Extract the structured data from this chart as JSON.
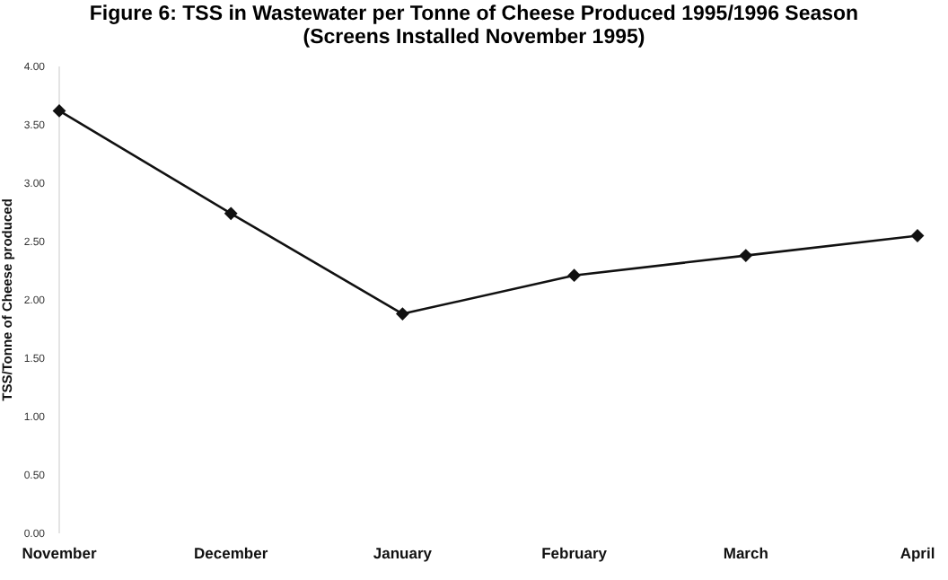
{
  "chart_data": {
    "type": "line",
    "title": "Figure 6: TSS in Wastewater per Tonne of Cheese Produced 1995/1996 Season",
    "subtitle": "(Screens Installed November 1995)",
    "ylabel": "TSS/Tonne of Cheese produced",
    "categories": [
      "November",
      "December",
      "January",
      "February",
      "March",
      "April"
    ],
    "series": [
      {
        "color": "#111111",
        "values": [
          3.62,
          2.74,
          1.88,
          2.21,
          2.38,
          2.55
        ]
      }
    ],
    "ylim": [
      0,
      4
    ],
    "yticks": [
      {
        "value": 0,
        "label": "0.00"
      },
      {
        "value": 0.5,
        "label": "0.50"
      },
      {
        "value": 1,
        "label": "1.00"
      },
      {
        "value": 1.5,
        "label": "1.50"
      },
      {
        "value": 2,
        "label": "2.00"
      },
      {
        "value": 2.5,
        "label": "2.50"
      },
      {
        "value": 3,
        "label": "3.00"
      },
      {
        "value": 3.5,
        "label": "3.50"
      },
      {
        "value": 4,
        "label": "4.00"
      }
    ],
    "grid": false,
    "legend": false,
    "marker": "diamond",
    "line_style": "solid"
  }
}
